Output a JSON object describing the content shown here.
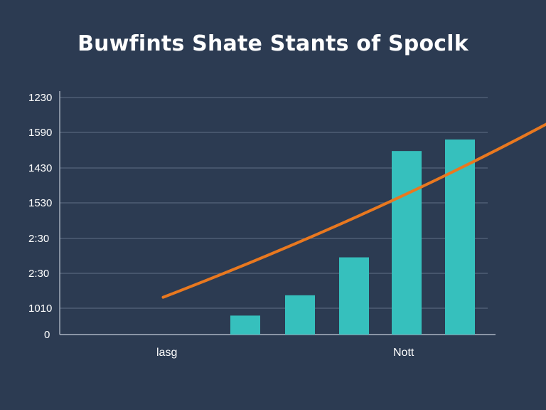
{
  "chart_data": {
    "type": "bar",
    "title": "Buwfints Shate Stants of Spoclk",
    "y_tick_labels": [
      "0",
      "1010",
      "2:30",
      "2:30",
      "1530",
      "1430",
      "1590",
      "1230"
    ],
    "x_labels": [
      "lasg",
      "Nott"
    ],
    "bars": [
      {
        "value": 0.56
      },
      {
        "value": 1.16
      },
      {
        "value": 2.28
      },
      {
        "value": 5.42
      },
      {
        "value": 5.76
      }
    ],
    "trend_line": [
      [
        -1.5,
        1.1
      ],
      [
        3.0,
        3.7
      ],
      [
        6.5,
        7.1
      ]
    ],
    "ylim": [
      0,
      7.5
    ],
    "grid": true,
    "colors": {
      "background": "#2c3b52",
      "bar": "#36c0bd",
      "trend": "#e9781f",
      "grid": "#56657c"
    }
  }
}
